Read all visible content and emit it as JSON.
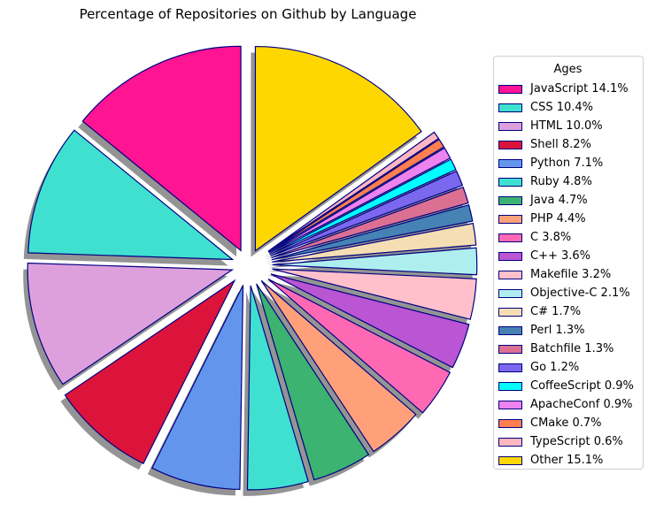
{
  "chart_data": {
    "type": "pie",
    "title": "Percentage of Repositories on Github by Language",
    "legend_title": "Ages",
    "legend_placement": "right",
    "edge_color": "#000080",
    "shadow": true,
    "slices": [
      {
        "label": "JavaScript 14.1%",
        "value": 14.1,
        "color": "#FF1493"
      },
      {
        "label": "CSS 10.4%",
        "value": 10.4,
        "color": "#40E0D0"
      },
      {
        "label": "HTML 10.0%",
        "value": 10.0,
        "color": "#DDA0DD"
      },
      {
        "label": "Shell 8.2%",
        "value": 8.2,
        "color": "#DC143C"
      },
      {
        "label": "Python 7.1%",
        "value": 7.1,
        "color": "#6495ED"
      },
      {
        "label": "Ruby 4.8%",
        "value": 4.8,
        "color": "#40E0D0"
      },
      {
        "label": "Java 4.7%",
        "value": 4.7,
        "color": "#3CB371"
      },
      {
        "label": "PHP 4.4%",
        "value": 4.4,
        "color": "#FFA07A"
      },
      {
        "label": "C 3.8%",
        "value": 3.8,
        "color": "#FF69B4"
      },
      {
        "label": "C++ 3.6%",
        "value": 3.6,
        "color": "#BA55D3"
      },
      {
        "label": "Makefile 3.2%",
        "value": 3.2,
        "color": "#FFC0CB"
      },
      {
        "label": "Objective-C 2.1%",
        "value": 2.1,
        "color": "#AFEEEE"
      },
      {
        "label": "C# 1.7%",
        "value": 1.7,
        "color": "#F5DEB3"
      },
      {
        "label": "Perl 1.3%",
        "value": 1.3,
        "color": "#4682B4"
      },
      {
        "label": "Batchfile 1.3%",
        "value": 1.3,
        "color": "#DB7093"
      },
      {
        "label": "Go 1.2%",
        "value": 1.2,
        "color": "#7B68EE"
      },
      {
        "label": "CoffeeScript 0.9%",
        "value": 0.9,
        "color": "#00FFFF"
      },
      {
        "label": "ApacheConf 0.9%",
        "value": 0.9,
        "color": "#EE82EE"
      },
      {
        "label": "CMake 0.7%",
        "value": 0.7,
        "color": "#FF7F50"
      },
      {
        "label": "TypeScript 0.6%",
        "value": 0.6,
        "color": "#FFB6C1"
      },
      {
        "label": "Other 15.1%",
        "value": 15.1,
        "color": "#FFD700"
      }
    ]
  }
}
